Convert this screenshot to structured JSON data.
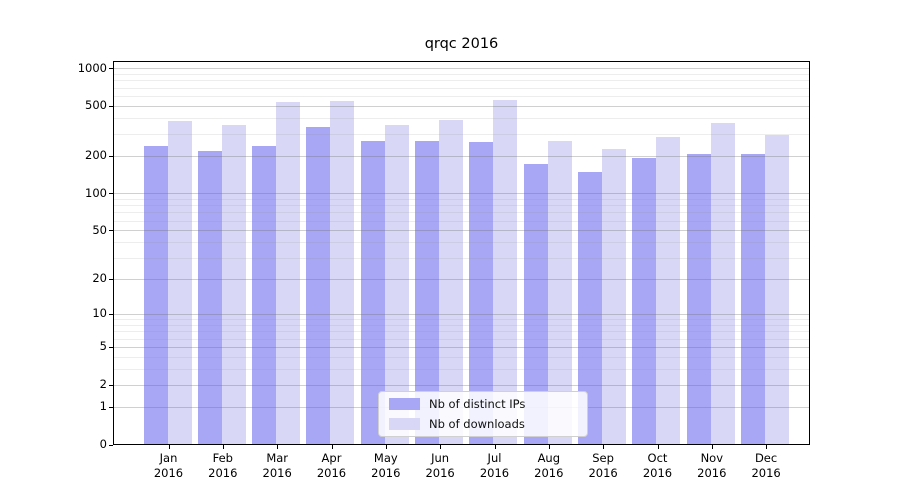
{
  "chart_data": {
    "type": "bar",
    "title": "qrqc 2016",
    "months": [
      "Jan",
      "Feb",
      "Mar",
      "Apr",
      "May",
      "Jun",
      "Jul",
      "Aug",
      "Sep",
      "Oct",
      "Nov",
      "Dec"
    ],
    "year": "2016",
    "series": [
      {
        "name": "Nb of distinct IPs",
        "color": "#a7a7f5",
        "values": [
          240,
          217,
          239,
          338,
          260,
          260,
          257,
          173,
          148,
          191,
          208,
          208
        ]
      },
      {
        "name": "Nb of downloads",
        "color": "#d8d8f6",
        "values": [
          381,
          352,
          540,
          550,
          350,
          388,
          560,
          261,
          228,
          281,
          365,
          295
        ]
      }
    ],
    "y_axis": {
      "scale": "log1p",
      "tick_values": [
        1000,
        500,
        200,
        100,
        50,
        20,
        10,
        5,
        2,
        1,
        0
      ],
      "tick_labels": [
        "1000",
        "500",
        "200",
        "100",
        "50",
        "20",
        "10",
        "5",
        "2",
        "1",
        "0"
      ],
      "range": [
        0,
        1140
      ],
      "grid": "both"
    },
    "legend": {
      "position": "bottom-center"
    }
  }
}
